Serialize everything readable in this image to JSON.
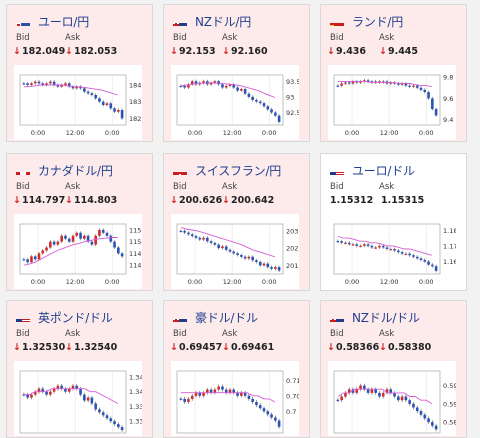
{
  "cards": [
    {
      "title": "ユーロ/円",
      "flag": "eu",
      "theme": "pink",
      "bid_label": "Bid",
      "ask_label": "Ask",
      "bid": "182.049",
      "ask": "182.053",
      "down": true,
      "y_ticks": [
        "184",
        "183",
        "182"
      ],
      "y_range": [
        181.6,
        184.6
      ],
      "x_ticks": [
        "0:00",
        "12:00",
        "0:00"
      ],
      "candles": [
        184.1,
        184.0,
        184.1,
        184.2,
        184.1,
        184.0,
        184.1,
        184.2,
        184.0,
        183.9,
        184.0,
        184.1,
        183.9,
        183.8,
        183.9,
        183.8,
        183.6,
        183.5,
        183.4,
        183.2,
        183.0,
        182.8,
        182.9,
        182.6,
        182.4,
        182.5,
        182.0
      ],
      "ma": [
        183.9,
        183.9,
        183.95,
        184.0,
        184.0,
        184.0,
        184.0,
        184.0,
        183.95,
        183.9,
        183.9,
        183.85,
        183.8,
        183.75,
        183.7,
        183.6,
        183.5,
        183.4
      ]
    },
    {
      "title": "NZドル/円",
      "flag": "nz",
      "theme": "pink",
      "bid_label": "Bid",
      "ask_label": "Ask",
      "bid": "92.153",
      "ask": "92.160",
      "down": true,
      "y_ticks": [
        "93.5",
        "93",
        "92.5"
      ],
      "y_range": [
        92.1,
        93.7
      ],
      "x_ticks": [
        "0:00",
        "12:00",
        "0:00"
      ],
      "candles": [
        93.35,
        93.3,
        93.4,
        93.5,
        93.4,
        93.45,
        93.5,
        93.4,
        93.45,
        93.5,
        93.4,
        93.3,
        93.35,
        93.4,
        93.3,
        93.2,
        93.25,
        93.1,
        93.0,
        92.9,
        92.85,
        92.8,
        92.7,
        92.6,
        92.5,
        92.4,
        92.2
      ],
      "ma": [
        93.35,
        93.38,
        93.4,
        93.42,
        93.44,
        93.45,
        93.45,
        93.43,
        93.42,
        93.4,
        93.38,
        93.35,
        93.3,
        93.25,
        93.2,
        93.12,
        93.05,
        92.98
      ]
    },
    {
      "title": "ランド/円",
      "flag": "za",
      "theme": "pink",
      "bid_label": "Bid",
      "ask_label": "Ask",
      "bid": "9.436",
      "ask": "9.445",
      "down": true,
      "y_ticks": [
        "9.8",
        "9.6",
        "9.4"
      ],
      "y_range": [
        9.35,
        9.82
      ],
      "x_ticks": [
        "0:00",
        "12:00",
        "0:00"
      ],
      "candles": [
        9.72,
        9.74,
        9.75,
        9.74,
        9.76,
        9.75,
        9.76,
        9.77,
        9.76,
        9.75,
        9.76,
        9.75,
        9.76,
        9.74,
        9.75,
        9.74,
        9.73,
        9.74,
        9.72,
        9.71,
        9.72,
        9.7,
        9.68,
        9.66,
        9.6,
        9.5,
        9.44
      ],
      "ma": [
        9.76,
        9.76,
        9.76,
        9.76,
        9.76,
        9.76,
        9.75,
        9.75,
        9.75,
        9.75,
        9.75,
        9.74,
        9.74,
        9.74,
        9.73,
        9.72,
        9.72,
        9.71
      ]
    },
    {
      "title": "カナダドル/円",
      "flag": "ca",
      "theme": "pink",
      "bid_label": "Bid",
      "ask_label": "Ask",
      "bid": "114.797",
      "ask": "114.803",
      "down": true,
      "y_ticks": [
        "115.2",
        "115",
        "114.8",
        "114.6"
      ],
      "y_range": [
        114.45,
        115.3
      ],
      "x_ticks": [
        "0:00",
        "12:00",
        "0:00"
      ],
      "candles": [
        114.7,
        114.65,
        114.75,
        114.7,
        114.8,
        114.85,
        114.9,
        115.0,
        114.95,
        115.0,
        115.1,
        115.05,
        115.0,
        115.1,
        115.15,
        115.05,
        115.1,
        115.0,
        114.95,
        115.1,
        115.2,
        115.15,
        115.1,
        115.0,
        114.9,
        114.8,
        114.75
      ],
      "ma": [
        114.6,
        114.62,
        114.65,
        114.7,
        114.75,
        114.8,
        114.85,
        114.88,
        114.92,
        114.95,
        114.97,
        115.0,
        115.02,
        115.04,
        115.05,
        115.06,
        115.07,
        115.07
      ]
    },
    {
      "title": "スイスフラン/円",
      "flag": "ch",
      "theme": "pink",
      "bid_label": "Bid",
      "ask_label": "Ask",
      "bid": "200.626",
      "ask": "200.642",
      "down": true,
      "y_ticks": [
        "203",
        "202",
        "201"
      ],
      "y_range": [
        200.5,
        203.4
      ],
      "x_ticks": [
        "0:00",
        "12:00",
        "0:00"
      ],
      "candles": [
        203.0,
        202.9,
        202.8,
        202.7,
        202.6,
        202.5,
        202.6,
        202.4,
        202.3,
        202.2,
        202.0,
        202.1,
        201.9,
        201.8,
        201.7,
        201.6,
        201.5,
        201.4,
        201.5,
        201.3,
        201.2,
        201.0,
        201.1,
        200.9,
        200.8,
        200.9,
        200.7
      ],
      "ma": [
        203.2,
        203.1,
        203.05,
        203.0,
        202.9,
        202.8,
        202.7,
        202.6,
        202.5,
        202.4,
        202.3,
        202.2,
        202.05,
        201.9,
        201.8,
        201.7,
        201.6,
        201.5
      ]
    },
    {
      "title": "ユーロ/ドル",
      "flag": "us",
      "theme": "white",
      "bid_label": "Bid",
      "ask_label": "Ask",
      "bid": "1.15312",
      "ask": "1.15315",
      "down": false,
      "y_ticks": [
        "1.18",
        "1.17",
        "1.16"
      ],
      "y_range": [
        1.152,
        1.184
      ],
      "x_ticks": [
        "0:00",
        "12:00",
        "0:00"
      ],
      "candles": [
        1.173,
        1.172,
        1.172,
        1.171,
        1.171,
        1.17,
        1.17,
        1.171,
        1.17,
        1.169,
        1.169,
        1.17,
        1.169,
        1.168,
        1.168,
        1.167,
        1.166,
        1.165,
        1.165,
        1.164,
        1.163,
        1.162,
        1.161,
        1.16,
        1.158,
        1.157,
        1.154
      ],
      "ma": [
        1.176,
        1.175,
        1.175,
        1.174,
        1.173,
        1.173,
        1.172,
        1.172,
        1.171,
        1.17,
        1.17,
        1.169,
        1.168,
        1.168,
        1.167,
        1.166,
        1.165,
        1.164
      ]
    },
    {
      "title": "英ポンド/ドル",
      "flag": "gb",
      "theme": "pink",
      "bid_label": "Bid",
      "ask_label": "Ask",
      "bid": "1.32530",
      "ask": "1.32540",
      "down": true,
      "y_ticks": [
        "1.345",
        "1.34",
        "1.335",
        "1.33"
      ],
      "y_range": [
        1.326,
        1.347
      ],
      "x_ticks": [],
      "candles": [
        1.339,
        1.338,
        1.339,
        1.34,
        1.341,
        1.34,
        1.339,
        1.34,
        1.341,
        1.342,
        1.341,
        1.34,
        1.341,
        1.342,
        1.341,
        1.339,
        1.337,
        1.338,
        1.336,
        1.334,
        1.333,
        1.332,
        1.331,
        1.33,
        1.329,
        1.328,
        1.327
      ],
      "ma": [
        1.339,
        1.339,
        1.34,
        1.34,
        1.34,
        1.341,
        1.341,
        1.341,
        1.341,
        1.341,
        1.341,
        1.341,
        1.34,
        1.34,
        1.339,
        1.338,
        1.337,
        1.336
      ]
    },
    {
      "title": "豪ドル/ドル",
      "flag": "au",
      "theme": "pink",
      "bid_label": "Bid",
      "ask_label": "Ask",
      "bid": "0.69457",
      "ask": "0.69461",
      "down": true,
      "y_ticks": [
        "0.71",
        "0.705",
        "0.7"
      ],
      "y_range": [
        0.693,
        0.713
      ],
      "x_ticks": [],
      "candles": [
        0.704,
        0.703,
        0.704,
        0.705,
        0.706,
        0.705,
        0.706,
        0.707,
        0.706,
        0.707,
        0.708,
        0.707,
        0.706,
        0.707,
        0.706,
        0.705,
        0.706,
        0.705,
        0.704,
        0.703,
        0.702,
        0.701,
        0.7,
        0.699,
        0.698,
        0.697,
        0.695
      ],
      "ma": [
        0.706,
        0.706,
        0.706,
        0.706,
        0.706,
        0.706,
        0.706,
        0.706,
        0.706,
        0.706,
        0.706,
        0.706,
        0.706,
        0.705,
        0.705,
        0.704,
        0.704,
        0.703
      ]
    },
    {
      "title": "NZドル/ドル",
      "flag": "nz",
      "theme": "pink",
      "bid_label": "Bid",
      "ask_label": "Ask",
      "bid": "0.58366",
      "ask": "0.58380",
      "down": true,
      "y_ticks": [
        "0.595",
        "0.59",
        "0.585"
      ],
      "y_range": [
        0.582,
        0.599
      ],
      "x_ticks": [],
      "candles": [
        0.591,
        0.592,
        0.593,
        0.594,
        0.593,
        0.594,
        0.595,
        0.594,
        0.593,
        0.594,
        0.593,
        0.592,
        0.593,
        0.594,
        0.593,
        0.592,
        0.591,
        0.592,
        0.591,
        0.59,
        0.589,
        0.588,
        0.587,
        0.586,
        0.585,
        0.584,
        0.583
      ],
      "ma": [
        0.592,
        0.593,
        0.593,
        0.594,
        0.594,
        0.594,
        0.594,
        0.594,
        0.594,
        0.593,
        0.593,
        0.593,
        0.593,
        0.592,
        0.592,
        0.591,
        0.591,
        0.59
      ]
    }
  ]
}
